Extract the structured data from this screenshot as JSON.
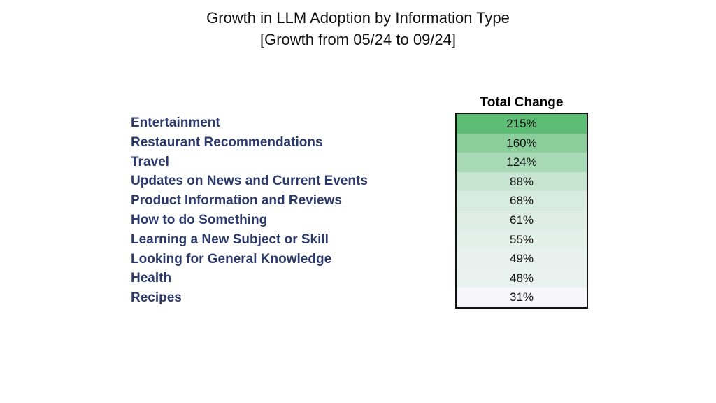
{
  "title_line1": "Growth in LLM Adoption by Information Type",
  "title_line2": "[Growth from 05/24 to 09/24]",
  "chart_data": {
    "type": "table",
    "title": "Growth in LLM Adoption by Information Type",
    "subtitle": "[Growth from 05/24 to 09/24]",
    "column_header": "Total Change",
    "categories": [
      "Entertainment",
      "Restaurant Recommendations",
      "Travel",
      "Updates on News and Current Events",
      "Product Information and Reviews",
      "How to do Something",
      "Learning a New Subject or Skill",
      "Looking for General Knowledge",
      "Health",
      "Recipes"
    ],
    "values": [
      215,
      160,
      124,
      88,
      68,
      61,
      55,
      49,
      48,
      31
    ],
    "value_labels": [
      "215%",
      "160%",
      "124%",
      "88%",
      "68%",
      "61%",
      "55%",
      "49%",
      "48%",
      "31%"
    ],
    "color_scale": {
      "low": "#f7f7fb",
      "high": "#5dbd74"
    }
  }
}
